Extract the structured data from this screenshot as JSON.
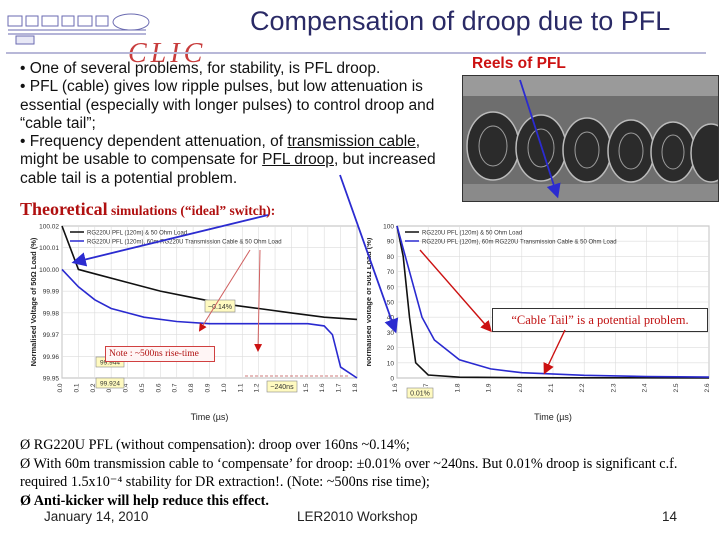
{
  "slide": {
    "title": "Compensation of droop due to PFL",
    "clic_logo_text": "CLIC",
    "bullets": [
      "• One of several problems, for stability, is PFL droop.",
      "• PFL (cable) gives low ripple pulses, but low attenuation is  essential (especially with longer pulses) to control droop and “cable tail”;",
      [
        "• Frequency dependent attenuation, of ",
        "transmission cable",
        ", might be usable to compensate for ",
        "PFL droop",
        ", but increased cable tail is a potential problem."
      ]
    ],
    "reels_label": "Reels of PFL",
    "theoretical_heading": "Theoretical",
    "theoretical_heading_small": " simulations (“ideal” switch):",
    "note": "Note : ~500ns rise-time",
    "cable_tail_note": "“Cable Tail” is a potential problem.",
    "conclusions": [
      "Ø RG220U PFL (without compensation): droop over 160ns ~0.14%;",
      "Ø With 60m transmission cable to ‘compensate’ for droop: ±0.01% over ~240ns. But 0.01% droop is significant c.f. required 1.5x10⁻⁴ stability for DR extraction!. (Note: ~500ns rise time);",
      "Ø Anti-kicker will help reduce this effect."
    ],
    "footer": {
      "date": "January 14, 2010",
      "event": "LER2010 Workshop",
      "page": "14"
    }
  },
  "colors": {
    "title": "#2a2a66",
    "accent_red": "#cc1111",
    "arrow": "#2b2bd0",
    "curve_black": "#111111",
    "curve_blue": "#2a2ad0"
  },
  "chart_data": [
    {
      "type": "line",
      "title": "",
      "xlabel": "Time (µs)",
      "ylabel": "Normalised Voltage of 50Ω Load (%)",
      "ylim": [
        99.95,
        100.02
      ],
      "xlim": [
        0.0,
        1.8
      ],
      "x_ticks": [
        "0.0",
        "0.1",
        "0.2",
        "0.3",
        "0.4",
        "0.5",
        "0.6",
        "0.7",
        "0.8",
        "0.9",
        "1.0",
        "1.1",
        "1.2",
        "1.3",
        "1.4",
        "1.5",
        "1.6",
        "1.7",
        "1.8"
      ],
      "y_ticks": [
        "99.95",
        "99.96",
        "99.97",
        "99.98",
        "99.99",
        "100.00",
        "100.01",
        "100.02"
      ],
      "legend": [
        "RG220U PFL (120m) & 50 Ohm Load",
        "RG220U PFL (120m), 60m RG220U Transmission Cable & 50 Ohm Load"
      ],
      "annotations": [
        "~0.14%",
        "99.944",
        "99.924",
        "~240ns"
      ],
      "series": [
        {
          "name": "RG220U PFL (120m) & 50 Ohm Load",
          "x": [
            0.0,
            0.05,
            0.1,
            0.2,
            0.4,
            0.6,
            0.8,
            1.0,
            1.2,
            1.4,
            1.6,
            1.8
          ],
          "y": [
            100.02,
            100.01,
            100.0,
            99.998,
            99.994,
            99.99,
            99.987,
            99.984,
            99.982,
            99.98,
            99.978,
            99.977
          ]
        },
        {
          "name": "RG220U PFL (120m), 60m RG220U Transmission Cable & 50 Ohm Load",
          "x": [
            0.0,
            0.1,
            0.2,
            0.3,
            0.5,
            0.7,
            0.9,
            1.1,
            1.3,
            1.5,
            1.6,
            1.65,
            1.7,
            1.8
          ],
          "y": [
            100.0,
            99.992,
            99.986,
            99.982,
            99.978,
            99.976,
            99.975,
            99.975,
            99.975,
            99.975,
            99.974,
            99.97,
            99.955,
            99.95
          ]
        }
      ]
    },
    {
      "type": "line",
      "title": "",
      "xlabel": "Time (µs)",
      "ylabel": "Normalised Voltage of 50Ω Load (%)",
      "ylim": [
        0,
        100
      ],
      "xlim": [
        1.6,
        2.6
      ],
      "x_ticks": [
        "1.6",
        "1.7",
        "1.8",
        "1.9",
        "2.0",
        "2.1",
        "2.2",
        "2.3",
        "2.4",
        "2.5",
        "2.6"
      ],
      "y_ticks": [
        "0",
        "10",
        "20",
        "30",
        "40",
        "50",
        "60",
        "70",
        "80",
        "90",
        "100"
      ],
      "legend": [
        "RG220U PFL (120m) & 50 Ohm Load",
        "RG220U PFL (120m), 60m RG220U Transmission Cable & 50 Ohm Load"
      ],
      "annotations": [
        "0.01%"
      ],
      "series": [
        {
          "name": "RG220U PFL (120m) & 50 Ohm Load",
          "x": [
            1.6,
            1.62,
            1.64,
            1.66,
            1.7,
            1.8,
            2.0,
            2.2,
            2.6
          ],
          "y": [
            100,
            80,
            40,
            10,
            2,
            0.5,
            0.2,
            0.1,
            0.05
          ]
        },
        {
          "name": "RG220U PFL (120m), 60m RG220U Transmission Cable & 50 Ohm Load",
          "x": [
            1.6,
            1.64,
            1.68,
            1.72,
            1.8,
            1.9,
            2.0,
            2.2,
            2.4,
            2.6
          ],
          "y": [
            100,
            70,
            40,
            25,
            12,
            6,
            3.5,
            1.8,
            1.0,
            0.6
          ]
        }
      ]
    }
  ]
}
